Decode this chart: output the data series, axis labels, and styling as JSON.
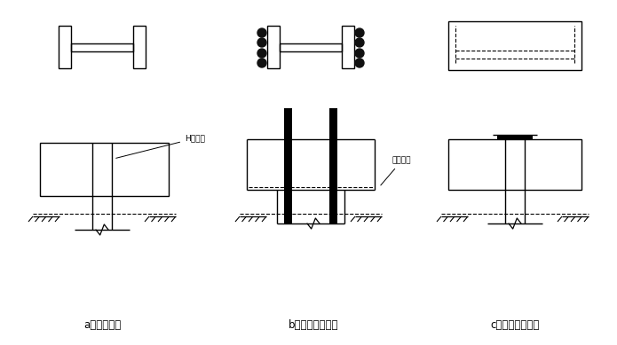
{
  "bg_color": "#ffffff",
  "line_color": "#000000",
  "title_a": "a）直接伸入",
  "title_b": "b）加焊锚固钢筋",
  "title_c": "c）桩顶平板加强",
  "label_h": "H型钢桩",
  "label_bt": "承台底面",
  "dot_color": "#111111",
  "thick_color": "#111111",
  "lw": 1.0
}
